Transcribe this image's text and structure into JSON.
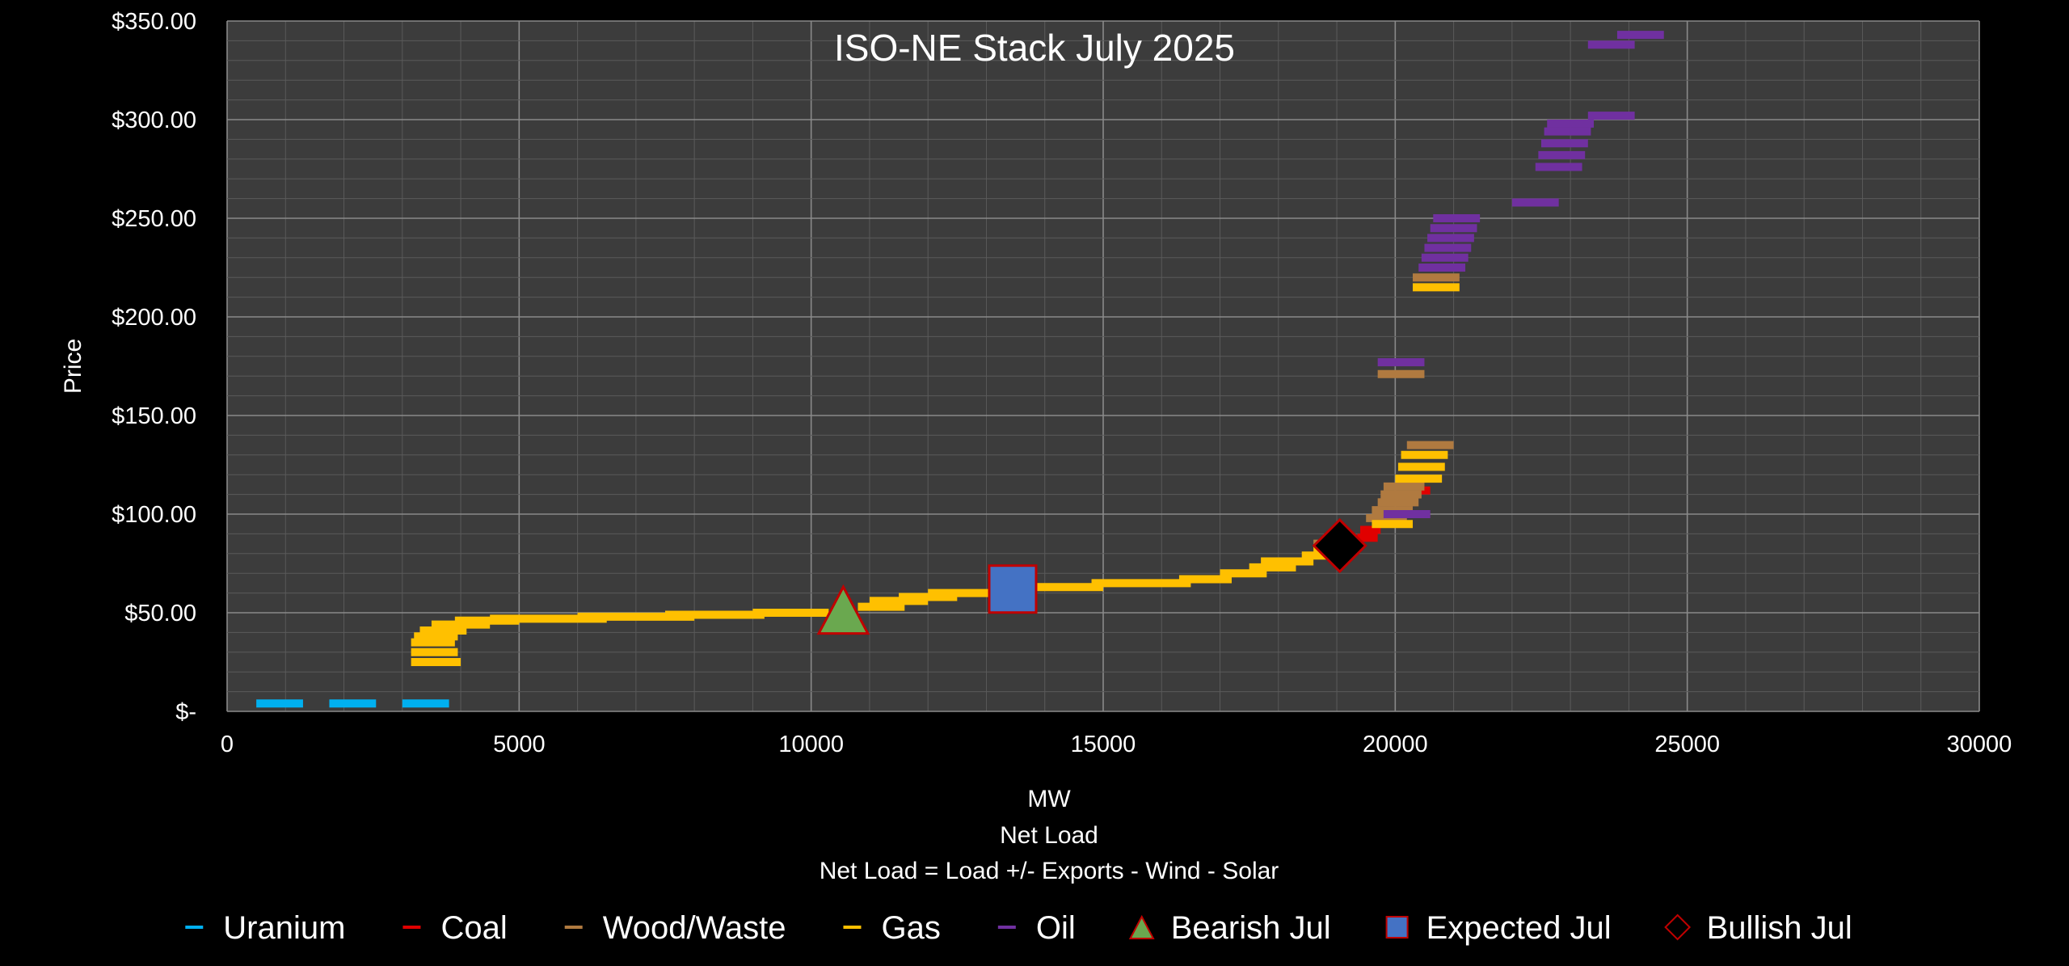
{
  "chart_data": {
    "type": "scatter",
    "title": "ISO-NE Stack July 2025",
    "xlabel_lines": [
      "MW",
      "Net Load",
      "Net Load = Load +/- Exports  - Wind - Solar"
    ],
    "ylabel": "Price",
    "xlim": [
      0,
      30000
    ],
    "ylim": [
      0,
      350
    ],
    "x_ticks": [
      0,
      5000,
      10000,
      15000,
      20000,
      25000,
      30000
    ],
    "x_tick_labels": [
      "0",
      "5000",
      "10000",
      "15000",
      "20000",
      "25000",
      "30000"
    ],
    "y_ticks": [
      0,
      50,
      100,
      150,
      200,
      250,
      300,
      350
    ],
    "y_tick_labels": [
      "$-",
      "$50.00",
      "$100.00",
      "$150.00",
      "$200.00",
      "$250.00",
      "$300.00",
      "$350.00"
    ],
    "grid": true,
    "legend_position": "bottom",
    "series": [
      {
        "name": "Uranium",
        "color": "#00b0f0",
        "segments": [
          {
            "x0": 500,
            "x1": 1300,
            "y": 4
          },
          {
            "x0": 1750,
            "x1": 2550,
            "y": 4
          },
          {
            "x0": 3000,
            "x1": 3800,
            "y": 4
          }
        ]
      },
      {
        "name": "Coal",
        "color": "#e00000",
        "segments": [
          {
            "x0": 19350,
            "x1": 19700,
            "y": 88
          },
          {
            "x0": 19400,
            "x1": 19750,
            "y": 92
          },
          {
            "x0": 20400,
            "x1": 20600,
            "y": 112
          }
        ]
      },
      {
        "name": "Wood/Waste",
        "color": "#b07a40",
        "segments": [
          {
            "x0": 18600,
            "x1": 19200,
            "y": 85
          },
          {
            "x0": 19500,
            "x1": 20200,
            "y": 98
          },
          {
            "x0": 19600,
            "x1": 20300,
            "y": 102
          },
          {
            "x0": 19700,
            "x1": 20400,
            "y": 106
          },
          {
            "x0": 19750,
            "x1": 20450,
            "y": 110
          },
          {
            "x0": 19800,
            "x1": 20500,
            "y": 114
          },
          {
            "x0": 20200,
            "x1": 21000,
            "y": 135
          },
          {
            "x0": 19700,
            "x1": 20500,
            "y": 171
          },
          {
            "x0": 20300,
            "x1": 21100,
            "y": 220
          }
        ]
      },
      {
        "name": "Gas",
        "color": "#ffc000",
        "segments": [
          {
            "x0": 3150,
            "x1": 4000,
            "y": 25
          },
          {
            "x0": 3150,
            "x1": 3950,
            "y": 30
          },
          {
            "x0": 3150,
            "x1": 3900,
            "y": 35
          },
          {
            "x0": 3200,
            "x1": 3950,
            "y": 38
          },
          {
            "x0": 3300,
            "x1": 4100,
            "y": 41
          },
          {
            "x0": 3500,
            "x1": 4500,
            "y": 44
          },
          {
            "x0": 3900,
            "x1": 5000,
            "y": 46
          },
          {
            "x0": 4500,
            "x1": 6500,
            "y": 47
          },
          {
            "x0": 6000,
            "x1": 8000,
            "y": 48
          },
          {
            "x0": 7500,
            "x1": 9200,
            "y": 49
          },
          {
            "x0": 9000,
            "x1": 10300,
            "y": 50
          },
          {
            "x0": 10800,
            "x1": 11600,
            "y": 53
          },
          {
            "x0": 11000,
            "x1": 12000,
            "y": 56
          },
          {
            "x0": 11500,
            "x1": 12500,
            "y": 58
          },
          {
            "x0": 12000,
            "x1": 13200,
            "y": 60
          },
          {
            "x0": 13800,
            "x1": 15000,
            "y": 63
          },
          {
            "x0": 14800,
            "x1": 16500,
            "y": 65
          },
          {
            "x0": 16300,
            "x1": 17200,
            "y": 67
          },
          {
            "x0": 17000,
            "x1": 17800,
            "y": 70
          },
          {
            "x0": 17500,
            "x1": 18300,
            "y": 73
          },
          {
            "x0": 17700,
            "x1": 18600,
            "y": 76
          },
          {
            "x0": 18400,
            "x1": 19200,
            "y": 79
          },
          {
            "x0": 18600,
            "x1": 19300,
            "y": 82
          },
          {
            "x0": 19600,
            "x1": 20300,
            "y": 95
          },
          {
            "x0": 20000,
            "x1": 20800,
            "y": 118
          },
          {
            "x0": 20050,
            "x1": 20850,
            "y": 124
          },
          {
            "x0": 20100,
            "x1": 20900,
            "y": 130
          },
          {
            "x0": 20300,
            "x1": 21100,
            "y": 215
          }
        ]
      },
      {
        "name": "Oil",
        "color": "#7030a0",
        "segments": [
          {
            "x0": 19800,
            "x1": 20600,
            "y": 100
          },
          {
            "x0": 19700,
            "x1": 20500,
            "y": 177
          },
          {
            "x0": 20400,
            "x1": 21200,
            "y": 225
          },
          {
            "x0": 20450,
            "x1": 21250,
            "y": 230
          },
          {
            "x0": 20500,
            "x1": 21300,
            "y": 235
          },
          {
            "x0": 20550,
            "x1": 21350,
            "y": 240
          },
          {
            "x0": 20600,
            "x1": 21400,
            "y": 245
          },
          {
            "x0": 20650,
            "x1": 21450,
            "y": 250
          },
          {
            "x0": 22000,
            "x1": 22800,
            "y": 258
          },
          {
            "x0": 22400,
            "x1": 23200,
            "y": 276
          },
          {
            "x0": 22450,
            "x1": 23250,
            "y": 282
          },
          {
            "x0": 22500,
            "x1": 23300,
            "y": 288
          },
          {
            "x0": 22550,
            "x1": 23350,
            "y": 294
          },
          {
            "x0": 22600,
            "x1": 23400,
            "y": 298
          },
          {
            "x0": 23300,
            "x1": 24100,
            "y": 302
          },
          {
            "x0": 23300,
            "x1": 24100,
            "y": 338
          },
          {
            "x0": 23800,
            "x1": 24600,
            "y": 343
          }
        ]
      }
    ],
    "markers": [
      {
        "name": "Bearish Jul",
        "shape": "triangle",
        "x": 10550,
        "y": 50,
        "fill": "#6aa84f",
        "stroke": "#c00000"
      },
      {
        "name": "Expected Jul",
        "shape": "square",
        "x": 13450,
        "y": 62,
        "fill": "#4472c4",
        "stroke": "#c00000"
      },
      {
        "name": "Bullish Jul",
        "shape": "diamond",
        "x": 19050,
        "y": 84,
        "fill": "#000000",
        "stroke": "#c00000"
      }
    ],
    "legend": [
      {
        "label": "Uranium",
        "kind": "line",
        "color": "#00b0f0"
      },
      {
        "label": "Coal",
        "kind": "line",
        "color": "#e00000"
      },
      {
        "label": "Wood/Waste",
        "kind": "line",
        "color": "#b07a40"
      },
      {
        "label": "Gas",
        "kind": "line",
        "color": "#ffc000"
      },
      {
        "label": "Oil",
        "kind": "line",
        "color": "#7030a0"
      },
      {
        "label": "Bearish Jul",
        "kind": "triangle",
        "color": "#6aa84f",
        "stroke": "#c00000"
      },
      {
        "label": "Expected Jul",
        "kind": "square",
        "color": "#4472c4",
        "stroke": "#c00000"
      },
      {
        "label": "Bullish Jul",
        "kind": "diamond",
        "color": "#000000",
        "stroke": "#c00000"
      }
    ],
    "colors": {
      "page_background": "#000000",
      "plot_background": "#3c3c3c",
      "major_grid": "#8a8a8a",
      "minor_grid": "#5a5a5a"
    }
  }
}
